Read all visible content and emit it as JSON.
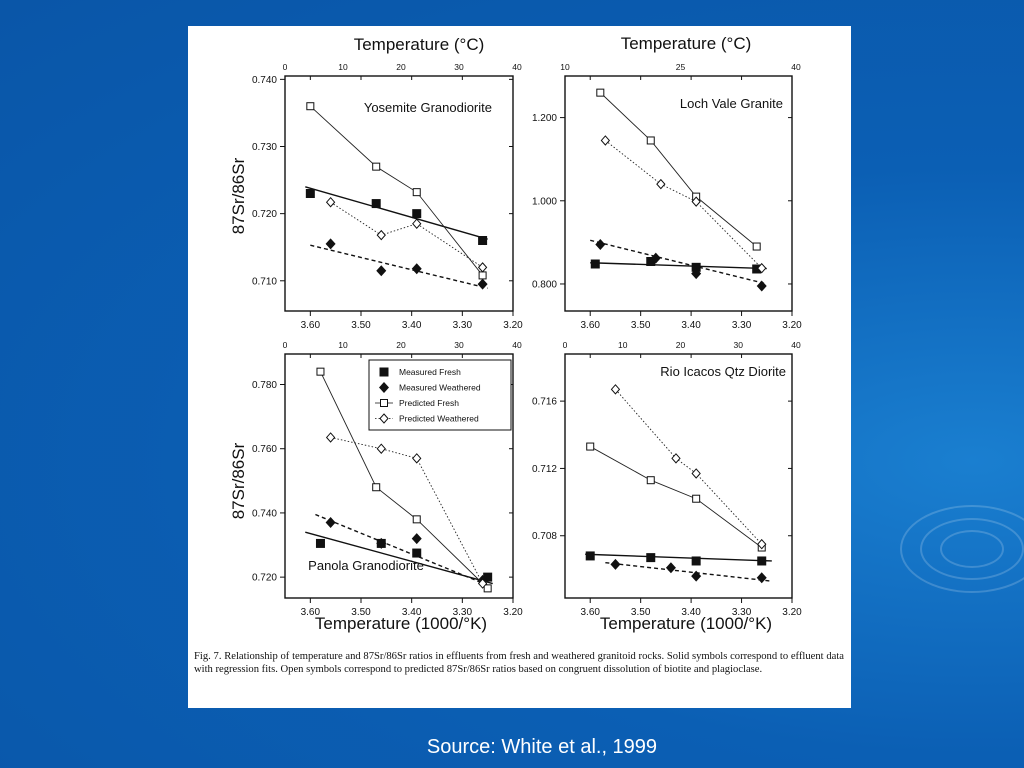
{
  "slide": {
    "source": "Source: White et al., 1999",
    "caption": "Fig. 7. Relationship of temperature and 87Sr/86Sr ratios in effluents from fresh and weathered granitoid rocks. Solid symbols correspond to effluent data with regression fits. Open symbols correspond to predicted 87Sr/86Sr ratios based on congruent dissolution of biotite and plagioclase.",
    "top_axis_title": "Temperature (°C)",
    "bottom_axis_title": "Temperature (1000/°K)",
    "y_axis_title": "87Sr/86Sr"
  },
  "legend": [
    "Measured Fresh",
    "Measured Weathered",
    "Predicted Fresh",
    "Predicted Weathered"
  ],
  "colors": {
    "background": "#0a5cb0",
    "panel": "#ffffff",
    "ink": "#111111"
  },
  "chart_data": [
    {
      "type": "line",
      "title": "Yosemite Granodiorite",
      "xlabel": "",
      "ylabel": "87Sr/86Sr",
      "xlim": [
        3.65,
        3.2
      ],
      "ylim": [
        0.7055,
        0.7405
      ],
      "xticks": [
        "3.60",
        "3.50",
        "3.40",
        "3.30",
        "3.20"
      ],
      "yticks": [
        "0.710",
        "0.720",
        "0.730",
        "0.740"
      ],
      "top_ticks": [
        "0",
        "10",
        "20",
        "30",
        "40"
      ],
      "series": [
        {
          "name": "Measured Fresh",
          "x": [
            3.6,
            3.47,
            3.39,
            3.26
          ],
          "y": [
            0.723,
            0.7215,
            0.72,
            0.716
          ]
        },
        {
          "name": "Measured Weathered",
          "x": [
            3.56,
            3.46,
            3.39,
            3.26
          ],
          "y": [
            0.7155,
            0.7115,
            0.7118,
            0.7095
          ]
        },
        {
          "name": "Predicted Fresh",
          "x": [
            3.6,
            3.47,
            3.39,
            3.26
          ],
          "y": [
            0.736,
            0.727,
            0.7232,
            0.7108
          ]
        },
        {
          "name": "Predicted Weathered",
          "x": [
            3.56,
            3.46,
            3.39,
            3.26
          ],
          "y": [
            0.7217,
            0.7168,
            0.7185,
            0.712
          ]
        }
      ],
      "fits": [
        {
          "name": "Measured Fresh",
          "x": [
            3.61,
            3.25
          ],
          "y": [
            0.724,
            0.7162
          ]
        },
        {
          "name": "Measured Weathered",
          "x": [
            3.6,
            3.25
          ],
          "y": [
            0.7153,
            0.7089
          ]
        }
      ]
    },
    {
      "type": "line",
      "title": "Loch Vale Granite",
      "xlabel": "",
      "ylabel": "",
      "xlim": [
        3.65,
        3.2
      ],
      "ylim": [
        0.735,
        1.3
      ],
      "xticks": [
        "3.60",
        "3.50",
        "3.40",
        "3.30",
        "3.20"
      ],
      "yticks": [
        "0.800",
        "1.000",
        "1.200"
      ],
      "top_ticks": [
        "10",
        "25",
        "40"
      ],
      "series": [
        {
          "name": "Measured Fresh",
          "x": [
            3.59,
            3.48,
            3.39,
            3.27
          ],
          "y": [
            0.848,
            0.854,
            0.84,
            0.836
          ]
        },
        {
          "name": "Measured Weathered",
          "x": [
            3.58,
            3.47,
            3.39,
            3.26
          ],
          "y": [
            0.895,
            0.862,
            0.825,
            0.795
          ]
        },
        {
          "name": "Predicted Fresh",
          "x": [
            3.58,
            3.48,
            3.39,
            3.27
          ],
          "y": [
            1.26,
            1.145,
            1.01,
            0.89
          ]
        },
        {
          "name": "Predicted Weathered",
          "x": [
            3.57,
            3.46,
            3.39,
            3.26
          ],
          "y": [
            1.145,
            1.04,
            0.998,
            0.838
          ]
        }
      ],
      "fits": [
        {
          "name": "Measured Fresh",
          "x": [
            3.6,
            3.25
          ],
          "y": [
            0.851,
            0.837
          ]
        },
        {
          "name": "Measured Weathered",
          "x": [
            3.6,
            3.25
          ],
          "y": [
            0.905,
            0.8
          ]
        }
      ]
    },
    {
      "type": "line",
      "title": "Panola Granodiorite",
      "xlabel": "",
      "ylabel": "87Sr/86Sr",
      "xlim": [
        3.65,
        3.2
      ],
      "ylim": [
        0.7135,
        0.7895
      ],
      "xticks": [
        "3.60",
        "3.50",
        "3.40",
        "3.30",
        "3.20"
      ],
      "yticks": [
        "0.720",
        "0.740",
        "0.760",
        "0.780"
      ],
      "top_ticks": [
        "0",
        "10",
        "20",
        "30",
        "40"
      ],
      "series": [
        {
          "name": "Measured Fresh",
          "x": [
            3.58,
            3.46,
            3.39,
            3.25
          ],
          "y": [
            0.7305,
            0.7305,
            0.7275,
            0.72
          ]
        },
        {
          "name": "Measured Weathered",
          "x": [
            3.56,
            3.46,
            3.39,
            3.26
          ],
          "y": [
            0.737,
            0.7305,
            0.732,
            0.719
          ]
        },
        {
          "name": "Predicted Fresh",
          "x": [
            3.58,
            3.47,
            3.39,
            3.25
          ],
          "y": [
            0.784,
            0.748,
            0.738,
            0.7165
          ]
        },
        {
          "name": "Predicted Weathered",
          "x": [
            3.56,
            3.46,
            3.39,
            3.26
          ],
          "y": [
            0.7635,
            0.76,
            0.757,
            0.718
          ]
        }
      ],
      "fits": [
        {
          "name": "Measured Fresh",
          "x": [
            3.61,
            3.24
          ],
          "y": [
            0.734,
            0.718
          ]
        },
        {
          "name": "Measured Weathered",
          "x": [
            3.59,
            3.25
          ],
          "y": [
            0.7395,
            0.7175
          ]
        }
      ]
    },
    {
      "type": "line",
      "title": "Rio Icacos Qtz Diorite",
      "xlabel": "",
      "ylabel": "",
      "xlim": [
        3.65,
        3.2
      ],
      "ylim": [
        0.7043,
        0.7188
      ],
      "xticks": [
        "3.60",
        "3.50",
        "3.40",
        "3.30",
        "3.20"
      ],
      "yticks": [
        "0.708",
        "0.712",
        "0.716"
      ],
      "top_ticks": [
        "0",
        "10",
        "20",
        "30",
        "40"
      ],
      "series": [
        {
          "name": "Measured Fresh",
          "x": [
            3.6,
            3.48,
            3.39,
            3.26
          ],
          "y": [
            0.7068,
            0.7067,
            0.7065,
            0.7065
          ]
        },
        {
          "name": "Measured Weathered",
          "x": [
            3.55,
            3.44,
            3.39,
            3.26
          ],
          "y": [
            0.7063,
            0.7061,
            0.7056,
            0.7055
          ]
        },
        {
          "name": "Predicted Fresh",
          "x": [
            3.6,
            3.48,
            3.39,
            3.26
          ],
          "y": [
            0.7133,
            0.7113,
            0.7102,
            0.7073
          ]
        },
        {
          "name": "Predicted Weathered",
          "x": [
            3.55,
            3.43,
            3.39,
            3.26
          ],
          "y": [
            0.7167,
            0.7126,
            0.7117,
            0.7075
          ]
        }
      ],
      "fits": [
        {
          "name": "Measured Fresh",
          "x": [
            3.61,
            3.24
          ],
          "y": [
            0.7069,
            0.7065
          ]
        },
        {
          "name": "Measured Weathered",
          "x": [
            3.57,
            3.24
          ],
          "y": [
            0.7064,
            0.7053
          ]
        }
      ]
    }
  ]
}
